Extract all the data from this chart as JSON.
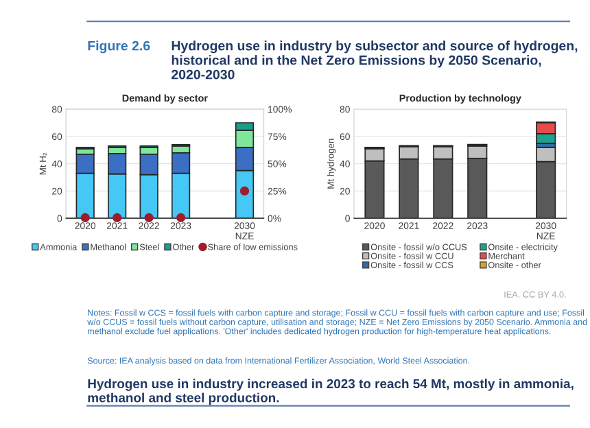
{
  "chart_data": [
    {
      "type": "bar",
      "title": "Demand by sector",
      "ylabel": "Mt H₂",
      "stacked": true,
      "grid": "y",
      "legend": "bottom",
      "categories": [
        "2020",
        "2021",
        "2022",
        "2023",
        null,
        "2030\nNZE"
      ],
      "ylim": [
        0,
        80
      ],
      "yticks": [
        0,
        20,
        40,
        60,
        80
      ],
      "y2lim": [
        0,
        100
      ],
      "y2ticks": [
        {
          "value": 0,
          "label": "0%"
        },
        {
          "value": 25,
          "label": "25%"
        },
        {
          "value": 50,
          "label": "50%"
        },
        {
          "value": 75,
          "label": "75%"
        },
        {
          "value": 100,
          "label": "100%"
        }
      ],
      "series": [
        {
          "name": "Ammonia",
          "color": "#45c8f5",
          "values": [
            33,
            32.5,
            32,
            33,
            null,
            35
          ]
        },
        {
          "name": "Methanol",
          "color": "#3a6fc4",
          "values": [
            14,
            15,
            15,
            15,
            null,
            17
          ]
        },
        {
          "name": "Steel",
          "color": "#7ee89a",
          "values": [
            4,
            4.5,
            5,
            5,
            null,
            12.5
          ]
        },
        {
          "name": "Other",
          "color": "#1a9e8c",
          "values": [
            1,
            1,
            1,
            1,
            null,
            5.5
          ]
        },
        {
          "name": "Share of low emissions",
          "type": "scatter",
          "axis": "y2",
          "marker": "circle",
          "color": "#a01c2c",
          "values": [
            0.5,
            0.5,
            0.5,
            0.5,
            null,
            25
          ]
        }
      ],
      "annotations": [
        "Figure 2.6",
        "Hydrogen use in industry by subsector and source of hydrogen, historical and in the Net Zero Emissions by 2050 Scenario, 2020-2030"
      ]
    },
    {
      "type": "bar",
      "title": "Production by technology",
      "ylabel": "Mt hydrogen",
      "stacked": true,
      "grid": "y",
      "legend": "bottom",
      "categories": [
        "2020",
        "2021",
        "2022",
        "2023",
        null,
        "2030\nNZE"
      ],
      "ylim": [
        0,
        80
      ],
      "yticks": [
        0,
        20,
        40,
        60,
        80
      ],
      "series": [
        {
          "name": "Onsite - fossil w/o CCUS",
          "color": "#595959",
          "values": [
            42,
            43.5,
            43.5,
            44,
            null,
            41.5
          ]
        },
        {
          "name": "Onsite - fossil w CCU",
          "color": "#bfbfbf",
          "values": [
            9,
            9,
            9,
            9,
            null,
            10.5
          ]
        },
        {
          "name": "Onsite - fossil w CCS",
          "color": "#2e6da4",
          "values": [
            0.7,
            0.5,
            0.5,
            0.8,
            null,
            3
          ]
        },
        {
          "name": "Onsite - electricity",
          "color": "#1aa390",
          "values": [
            0,
            0,
            0,
            0,
            null,
            7
          ]
        },
        {
          "name": "Merchant",
          "color": "#e84a4a",
          "values": [
            0,
            0,
            0,
            0,
            null,
            8
          ]
        },
        {
          "name": "Onsite - other",
          "color": "#d9a520",
          "values": [
            0.3,
            0.3,
            0.3,
            0.3,
            null,
            0.5
          ]
        }
      ],
      "annotations": [
        "IEA. CC BY 4.0.",
        "Notes: Fossil w CCS = fossil fuels with carbon capture and storage; Fossil w CCU = fossil fuels with carbon capture and use; Fossil w/o CCUS = fossil fuels without carbon capture, utilisation and storage; NZE = Net Zero Emissions by 2050 Scenario. Ammonia and methanol exclude fuel applications. 'Other' includes dedicated hydrogen production for high-temperature heat applications.",
        "Source: IEA analysis based on data from International Fertilizer Association, World Steel Association.",
        "Hydrogen use in industry increased in 2023 to reach 54 Mt, mostly in ammonia, methanol and steel production."
      ]
    }
  ]
}
